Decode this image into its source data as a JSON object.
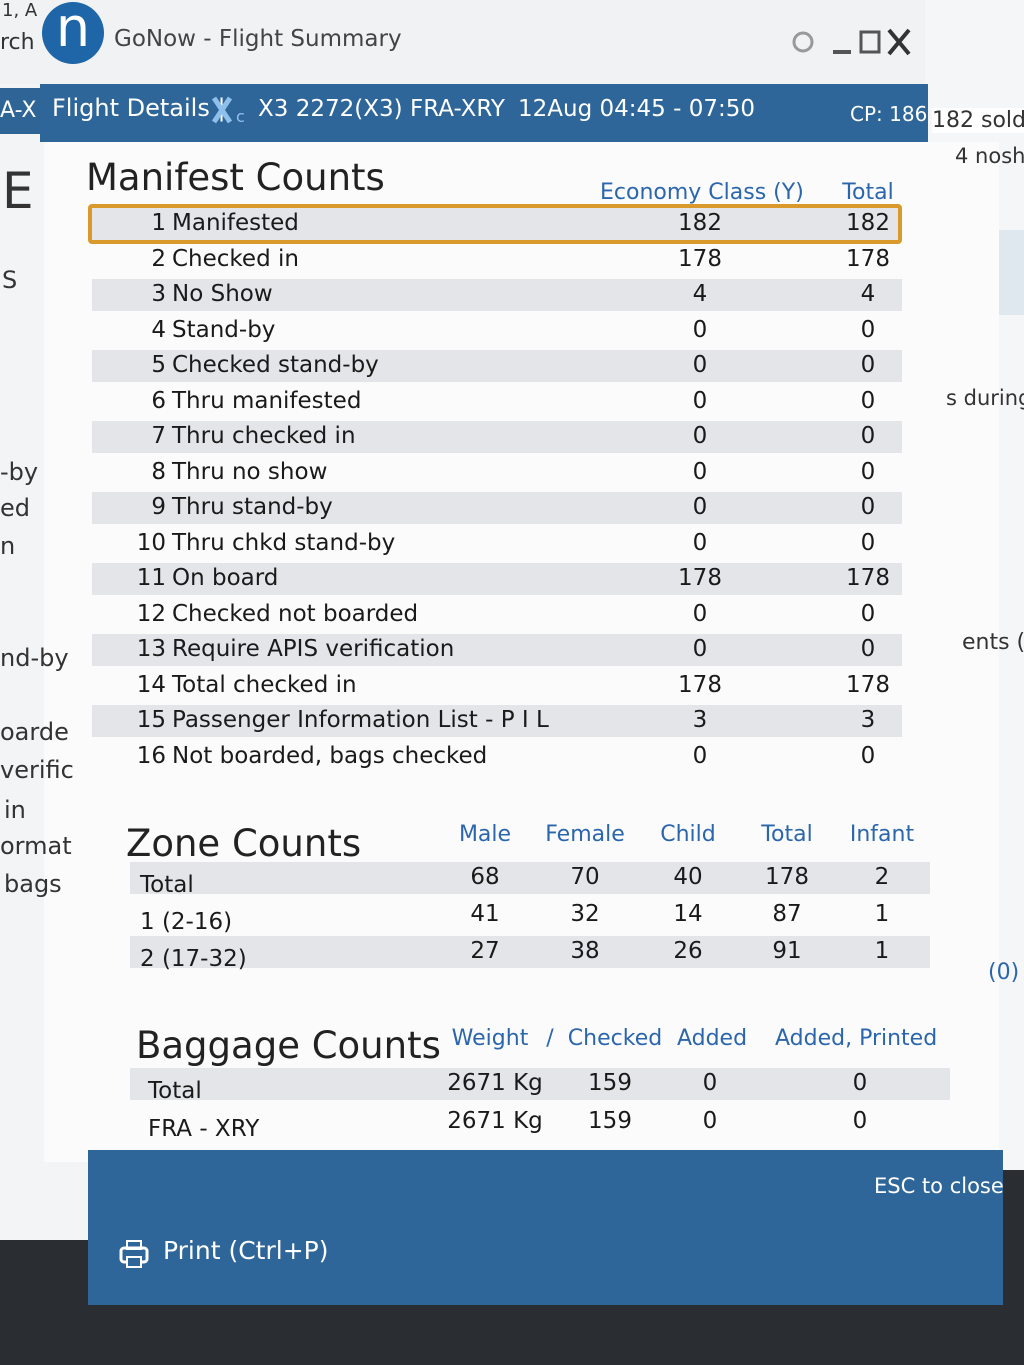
{
  "window": {
    "app_icon": "n",
    "title": "GoNow - Flight Summary"
  },
  "header": {
    "label": "Flight Details |",
    "flight": "X3 2272(X3)",
    "route": "FRA-XRY",
    "date": "12Aug 04:45 - 07:50",
    "cp": "CP: 186"
  },
  "background": {
    "left": [
      "1, A",
      "rch",
      "A-X",
      "E",
      "S",
      "-by",
      "ed",
      "n",
      "nd-by",
      "oarde",
      "verific",
      "in",
      "ormat",
      "bags"
    ],
    "right": [
      "182 sold",
      "4 nosh",
      "s during",
      "ents (",
      "(0)"
    ]
  },
  "manifest": {
    "title": "Manifest Counts",
    "columns": [
      "Economy Class (Y)",
      "Total"
    ],
    "rows": [
      [
        1,
        "Manifested",
        182,
        182
      ],
      [
        2,
        "Checked in",
        178,
        178
      ],
      [
        3,
        "No Show",
        4,
        4
      ],
      [
        4,
        "Stand-by",
        0,
        0
      ],
      [
        5,
        "Checked stand-by",
        0,
        0
      ],
      [
        6,
        "Thru manifested",
        0,
        0
      ],
      [
        7,
        "Thru checked in",
        0,
        0
      ],
      [
        8,
        "Thru no show",
        0,
        0
      ],
      [
        9,
        "Thru stand-by",
        0,
        0
      ],
      [
        10,
        "Thru chkd stand-by",
        0,
        0
      ],
      [
        11,
        "On board",
        178,
        178
      ],
      [
        12,
        "Checked not boarded",
        0,
        0
      ],
      [
        13,
        "Require APIS verification",
        0,
        0
      ],
      [
        14,
        "Total checked in",
        178,
        178
      ],
      [
        15,
        "Passenger Information List - P I L",
        3,
        3
      ],
      [
        16,
        "Not boarded, bags checked",
        0,
        0
      ]
    ]
  },
  "zone": {
    "title": "Zone Counts",
    "columns": [
      "Male",
      "Female",
      "Child",
      "Total",
      "Infant"
    ],
    "rows": [
      [
        "Total",
        68,
        70,
        40,
        178,
        2
      ],
      [
        "1 (2-16)",
        41,
        32,
        14,
        87,
        1
      ],
      [
        "2 (17-32)",
        27,
        38,
        26,
        91,
        1
      ]
    ]
  },
  "baggage": {
    "title": "Baggage Counts",
    "columns": [
      "Weight",
      "/",
      "Checked",
      "Added",
      "Added, Printed"
    ],
    "rows": [
      [
        "Total",
        "2671 Kg",
        159,
        0,
        0
      ],
      [
        "FRA - XRY",
        "2671 Kg",
        159,
        0,
        0
      ]
    ]
  },
  "footer": {
    "print": "Print (Ctrl+P)",
    "close": "ESC to close"
  }
}
